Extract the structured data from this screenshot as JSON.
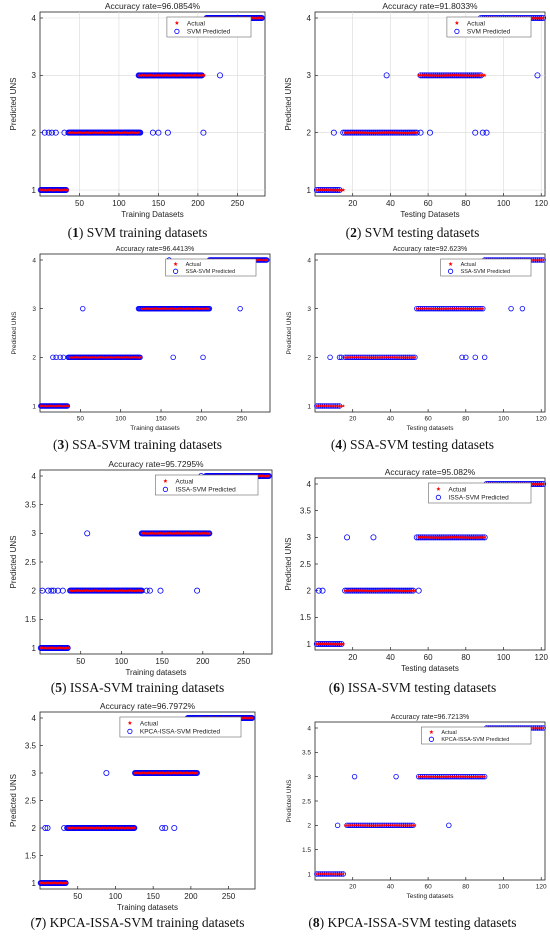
{
  "chart_data": [
    {
      "type": "scatter",
      "title": "Accuracy rate=96.0854%",
      "xlabel": "Training Datasets",
      "ylabel": "Predicted UNS",
      "xlim": [
        0,
        285
      ],
      "ylim": [
        1,
        4
      ],
      "xticks": [
        "50",
        "100",
        "150",
        "200",
        "250"
      ],
      "yticks": [
        "1",
        "2",
        "3",
        "4"
      ],
      "legend": [
        "Actual",
        "SVM Predicted"
      ],
      "legend_position": "top-right",
      "grid": true,
      "series": [
        {
          "name": "Actual",
          "marker": "*",
          "color": "#ff0000",
          "segments": [
            {
              "y": 1,
              "x0": 1,
              "x1": 36
            },
            {
              "y": 2,
              "x0": 37,
              "x1": 125
            },
            {
              "y": 3,
              "x0": 126,
              "x1": 208
            },
            {
              "y": 4,
              "x0": 209,
              "x1": 281
            }
          ]
        },
        {
          "name": "SVM Predicted",
          "marker": "o",
          "color": "#0000ff",
          "segments": [
            {
              "y": 1,
              "x0": 1,
              "x1": 33
            },
            {
              "y": 2,
              "x0": 36,
              "x1": 127
            },
            {
              "y": 3,
              "x0": 125,
              "x1": 205
            },
            {
              "y": 4,
              "x0": 211,
              "x1": 281
            }
          ],
          "outliers": [
            [
              6,
              2
            ],
            [
              11,
              2
            ],
            [
              15,
              2
            ],
            [
              20,
              2
            ],
            [
              31,
              2
            ],
            [
              143,
              2
            ],
            [
              150,
              2
            ],
            [
              162,
              2
            ],
            [
              207,
              2
            ],
            [
              228,
              3
            ]
          ]
        }
      ]
    },
    {
      "type": "scatter",
      "title": "Accuracy rate=91.8033%",
      "xlabel": "Testing Datasets",
      "ylabel": "Predicted UNS",
      "xlim": [
        0,
        122
      ],
      "ylim": [
        1,
        4
      ],
      "xticks": [
        "20",
        "40",
        "60",
        "80",
        "100",
        "120"
      ],
      "yticks": [
        "1",
        "2",
        "3",
        "4"
      ],
      "legend": [
        "Actual",
        "SVM Predicted"
      ],
      "legend_position": "top-right",
      "grid": true,
      "series": [
        {
          "name": "Actual",
          "marker": "*",
          "color": "#ff0000",
          "segments": [
            {
              "y": 1,
              "x0": 1,
              "x1": 15
            },
            {
              "y": 2,
              "x0": 16,
              "x1": 54
            },
            {
              "y": 3,
              "x0": 55,
              "x1": 90
            },
            {
              "y": 4,
              "x0": 91,
              "x1": 121
            }
          ]
        },
        {
          "name": "SVM Predicted",
          "marker": "o",
          "color": "#0000ff",
          "segments": [
            {
              "y": 1,
              "x0": 1,
              "x1": 13
            },
            {
              "y": 2,
              "x0": 15,
              "x1": 54
            },
            {
              "y": 3,
              "x0": 56,
              "x1": 88
            },
            {
              "y": 4,
              "x0": 89,
              "x1": 121
            }
          ],
          "outliers": [
            [
              10,
              2
            ],
            [
              56,
              2
            ],
            [
              61,
              2
            ],
            [
              85,
              2
            ],
            [
              89,
              2
            ],
            [
              91,
              2
            ],
            [
              38,
              3
            ],
            [
              118,
              3
            ],
            [
              88,
              4
            ]
          ]
        }
      ]
    },
    {
      "type": "scatter",
      "title": "Accuracy rate=96.4413%",
      "xlabel": "Training datasets",
      "ylabel": "Predicted UNS",
      "xlim": [
        0,
        285
      ],
      "ylim": [
        1,
        4
      ],
      "xticks": [
        "50",
        "100",
        "150",
        "200",
        "250"
      ],
      "yticks": [
        "1",
        "2",
        "3",
        "4"
      ],
      "legend": [
        "Actual",
        "SSA-SVM Predicted"
      ],
      "legend_position": "top-right",
      "grid": false,
      "series": [
        {
          "name": "Actual",
          "marker": "*",
          "color": "#ff0000",
          "segments": [
            {
              "y": 1,
              "x0": 1,
              "x1": 36
            },
            {
              "y": 2,
              "x0": 37,
              "x1": 125
            },
            {
              "y": 3,
              "x0": 126,
              "x1": 208
            },
            {
              "y": 4,
              "x0": 209,
              "x1": 281
            }
          ]
        },
        {
          "name": "SSA-SVM Predicted",
          "marker": "o",
          "color": "#0000ff",
          "segments": [
            {
              "y": 1,
              "x0": 1,
              "x1": 34
            },
            {
              "y": 2,
              "x0": 35,
              "x1": 124
            },
            {
              "y": 3,
              "x0": 122,
              "x1": 210
            },
            {
              "y": 4,
              "x0": 210,
              "x1": 281
            }
          ],
          "outliers": [
            [
              16,
              2
            ],
            [
              20,
              2
            ],
            [
              25,
              2
            ],
            [
              29,
              2
            ],
            [
              165,
              2
            ],
            [
              202,
              2
            ],
            [
              53,
              3
            ],
            [
              248,
              3
            ],
            [
              160,
              4
            ]
          ]
        }
      ]
    },
    {
      "type": "scatter",
      "title": "Accuracy rate=92.623%",
      "xlabel": "Testing datasets",
      "ylabel": "Predicted UNS",
      "xlim": [
        0,
        122
      ],
      "ylim": [
        1,
        4
      ],
      "xticks": [
        "20",
        "40",
        "60",
        "80",
        "100",
        "120"
      ],
      "yticks": [
        "1",
        "2",
        "3",
        "4"
      ],
      "legend": [
        "Actual",
        "SSA-SVM Predicted"
      ],
      "legend_position": "top-right",
      "grid": false,
      "series": [
        {
          "name": "Actual",
          "marker": "*",
          "color": "#ff0000",
          "segments": [
            {
              "y": 1,
              "x0": 1,
              "x1": 15
            },
            {
              "y": 2,
              "x0": 16,
              "x1": 53
            },
            {
              "y": 3,
              "x0": 54,
              "x1": 89
            },
            {
              "y": 4,
              "x0": 90,
              "x1": 121
            }
          ]
        },
        {
          "name": "SSA-SVM Predicted",
          "marker": "o",
          "color": "#0000ff",
          "segments": [
            {
              "y": 1,
              "x0": 1,
              "x1": 13
            },
            {
              "y": 2,
              "x0": 16,
              "x1": 53
            },
            {
              "y": 3,
              "x0": 54,
              "x1": 89
            },
            {
              "y": 4,
              "x0": 90,
              "x1": 121
            }
          ],
          "outliers": [
            [
              8,
              2
            ],
            [
              13,
              2
            ],
            [
              14,
              2
            ],
            [
              78,
              2
            ],
            [
              80,
              2
            ],
            [
              85,
              2
            ],
            [
              90,
              2
            ],
            [
              104,
              3
            ],
            [
              110,
              3
            ]
          ]
        }
      ]
    },
    {
      "type": "scatter",
      "title": "Accuracy rate=95.7295%",
      "xlabel": "Training datasets",
      "ylabel": "Predicted UNS",
      "xlim": [
        0,
        285
      ],
      "ylim": [
        1,
        4
      ],
      "xticks": [
        "50",
        "100",
        "150",
        "200",
        "250"
      ],
      "yticks": [
        "1",
        "1.5",
        "2",
        "2.5",
        "3",
        "3.5",
        "4"
      ],
      "legend": [
        "Actual",
        "ISSA-SVM Predicted"
      ],
      "legend_position": "top-right",
      "grid": false,
      "series": [
        {
          "name": "Actual",
          "marker": "*",
          "color": "#ff0000",
          "segments": [
            {
              "y": 1,
              "x0": 1,
              "x1": 36
            },
            {
              "y": 2,
              "x0": 37,
              "x1": 125
            },
            {
              "y": 3,
              "x0": 126,
              "x1": 208
            },
            {
              "y": 4,
              "x0": 209,
              "x1": 281
            }
          ]
        },
        {
          "name": "ISSA-SVM Predicted",
          "marker": "o",
          "color": "#0000ff",
          "segments": [
            {
              "y": 1,
              "x0": 1,
              "x1": 34
            },
            {
              "y": 2,
              "x0": 37,
              "x1": 125
            },
            {
              "y": 3,
              "x0": 125,
              "x1": 208
            },
            {
              "y": 4,
              "x0": 204,
              "x1": 281
            }
          ],
          "outliers": [
            [
              3,
              2
            ],
            [
              10,
              2
            ],
            [
              14,
              2
            ],
            [
              17,
              2
            ],
            [
              22,
              2
            ],
            [
              28,
              2
            ],
            [
              131,
              2
            ],
            [
              135,
              2
            ],
            [
              148,
              2
            ],
            [
              193,
              2
            ],
            [
              58,
              3
            ],
            [
              198,
              4
            ]
          ]
        }
      ]
    },
    {
      "type": "scatter",
      "title": "Accuracy rate=95.082%",
      "xlabel": "Testing datasets",
      "ylabel": "Predicted UNS",
      "xlim": [
        0,
        122
      ],
      "ylim": [
        1,
        4
      ],
      "xticks": [
        "20",
        "40",
        "60",
        "80",
        "100",
        "120"
      ],
      "yticks": [
        "1",
        "1.5",
        "2",
        "2.5",
        "3",
        "3.5",
        "4"
      ],
      "legend": [
        "Actual",
        "ISSA-SVM Predicted"
      ],
      "legend_position": "top-right",
      "grid": false,
      "series": [
        {
          "name": "Actual",
          "marker": "*",
          "color": "#ff0000",
          "segments": [
            {
              "y": 1,
              "x0": 1,
              "x1": 15
            },
            {
              "y": 2,
              "x0": 16,
              "x1": 53
            },
            {
              "y": 3,
              "x0": 55,
              "x1": 90
            },
            {
              "y": 4,
              "x0": 91,
              "x1": 121
            }
          ]
        },
        {
          "name": "ISSA-SVM Predicted",
          "marker": "o",
          "color": "#0000ff",
          "segments": [
            {
              "y": 1,
              "x0": 1,
              "x1": 14
            },
            {
              "y": 2,
              "x0": 16,
              "x1": 52
            },
            {
              "y": 3,
              "x0": 54,
              "x1": 90
            },
            {
              "y": 4,
              "x0": 91,
              "x1": 121
            }
          ],
          "outliers": [
            [
              2,
              2
            ],
            [
              4,
              2
            ],
            [
              55,
              2
            ],
            [
              17,
              3
            ],
            [
              31,
              3
            ]
          ]
        }
      ]
    },
    {
      "type": "scatter",
      "title": "Accuracy rate=96.7972%",
      "xlabel": "Training datasets",
      "ylabel": "Predicted UNS",
      "xlim": [
        0,
        285
      ],
      "ylim": [
        1,
        4
      ],
      "xticks": [
        "50",
        "100",
        "150",
        "200",
        "250"
      ],
      "yticks": [
        "1",
        "1.5",
        "2",
        "2.5",
        "3",
        "3.5",
        "4"
      ],
      "legend": [
        "Actual",
        "KPCA-ISSA-SVM Predicted"
      ],
      "legend_position": "top-right",
      "grid": false,
      "series": [
        {
          "name": "Actual",
          "marker": "*",
          "color": "#ff0000",
          "segments": [
            {
              "y": 1,
              "x0": 1,
              "x1": 36
            },
            {
              "y": 2,
              "x0": 37,
              "x1": 125
            },
            {
              "y": 3,
              "x0": 126,
              "x1": 208
            },
            {
              "y": 4,
              "x0": 209,
              "x1": 281
            }
          ]
        },
        {
          "name": "KPCA-ISSA-SVM Predicted",
          "marker": "o",
          "color": "#0000ff",
          "segments": [
            {
              "y": 1,
              "x0": 1,
              "x1": 34
            },
            {
              "y": 2,
              "x0": 36,
              "x1": 125
            },
            {
              "y": 3,
              "x0": 126,
              "x1": 208
            },
            {
              "y": 4,
              "x0": 196,
              "x1": 281
            }
          ],
          "outliers": [
            [
              7,
              2
            ],
            [
              10,
              2
            ],
            [
              32,
              2
            ],
            [
              162,
              2
            ],
            [
              166,
              2
            ],
            [
              178,
              2
            ],
            [
              88,
              3
            ]
          ]
        }
      ]
    },
    {
      "type": "scatter",
      "title": "Accuracy rate=96.7213%",
      "xlabel": "Testing datasets",
      "ylabel": "Predicted UNS",
      "xlim": [
        0,
        122
      ],
      "ylim": [
        1,
        4
      ],
      "xticks": [
        "20",
        "40",
        "60",
        "80",
        "100",
        "120"
      ],
      "yticks": [
        "1",
        "1.5",
        "2",
        "2.5",
        "3",
        "3.5",
        "4"
      ],
      "legend": [
        "Actual",
        "KPCA-ISSA-SVM Predicted"
      ],
      "legend_position": "top-right",
      "grid": false,
      "series": [
        {
          "name": "Actual",
          "marker": "*",
          "color": "#ff0000",
          "segments": [
            {
              "y": 1,
              "x0": 1,
              "x1": 15
            },
            {
              "y": 2,
              "x0": 16,
              "x1": 53
            },
            {
              "y": 3,
              "x0": 55,
              "x1": 90
            },
            {
              "y": 4,
              "x0": 91,
              "x1": 121
            }
          ]
        },
        {
          "name": "KPCA-ISSA-SVM Predicted",
          "marker": "o",
          "color": "#0000ff",
          "segments": [
            {
              "y": 1,
              "x0": 1,
              "x1": 15
            },
            {
              "y": 2,
              "x0": 17,
              "x1": 52
            },
            {
              "y": 3,
              "x0": 55,
              "x1": 90
            },
            {
              "y": 4,
              "x0": 91,
              "x1": 121
            }
          ],
          "outliers": [
            [
              12,
              2
            ],
            [
              71,
              2
            ],
            [
              21,
              3
            ],
            [
              43,
              3
            ]
          ]
        }
      ]
    }
  ],
  "captions": [
    {
      "num": "1",
      "text": "SVM training datasets"
    },
    {
      "num": "2",
      "text": "SVM testing datasets"
    },
    {
      "num": "3",
      "text": "SSA-SVM training datasets"
    },
    {
      "num": "4",
      "text": "SSA-SVM testing datasets"
    },
    {
      "num": "5",
      "text": "ISSA-SVM training datasets"
    },
    {
      "num": "6",
      "text": "ISSA-SVM testing datasets"
    },
    {
      "num": "7",
      "text": "KPCA-ISSA-SVM training datasets"
    },
    {
      "num": "8",
      "text": "KPCA-ISSA-SVM testing datasets"
    }
  ],
  "colors": {
    "actual": "#ff0000",
    "predicted": "#0000ff",
    "axis": "#222222",
    "grid": "#d9d9d9"
  }
}
